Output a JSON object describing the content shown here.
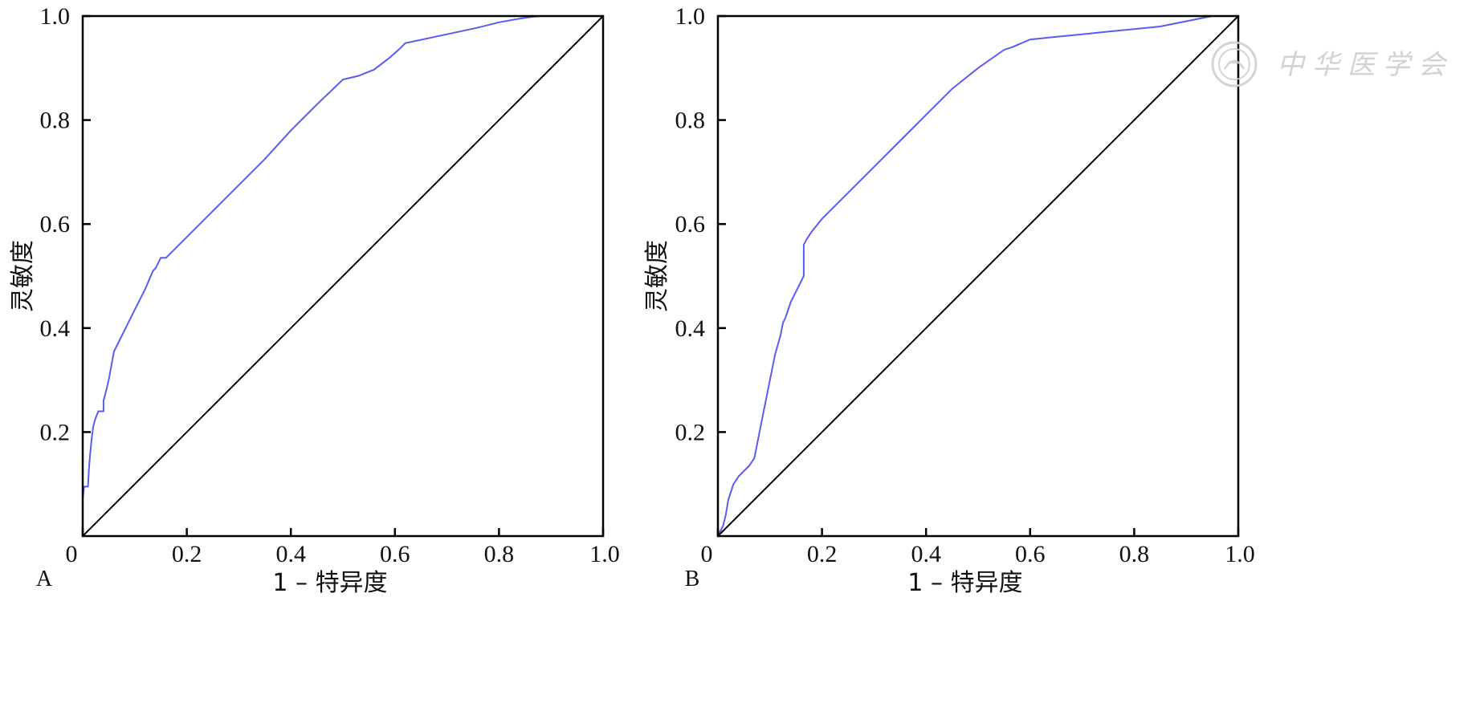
{
  "chart_data": [
    {
      "type": "line",
      "panel_label": "A",
      "xlabel": "1 – 特异度",
      "ylabel": "灵敏度",
      "xlim": [
        0,
        1
      ],
      "ylim": [
        0,
        1
      ],
      "x_ticks": [
        0,
        0.2,
        0.4,
        0.6,
        0.8,
        1.0
      ],
      "x_tick_labels": [
        "0",
        "0.2",
        "0.4",
        "0.6",
        "0.8",
        "1.0"
      ],
      "y_ticks": [
        0.2,
        0.4,
        0.6,
        0.8,
        1.0
      ],
      "y_tick_labels": [
        "0.2",
        "0.4",
        "0.6",
        "0.8",
        "1.0"
      ],
      "grid": false,
      "legend": "none",
      "series": [
        {
          "color": "#5b5bf0",
          "x": [
            0,
            0.002,
            0.003,
            0.006,
            0.01,
            0.012,
            0.014,
            0.017,
            0.02,
            0.024,
            0.03,
            0.035,
            0.04,
            0.04,
            0.045,
            0.05,
            0.06,
            0.07,
            0.085,
            0.1,
            0.12,
            0.135,
            0.14,
            0.145,
            0.15,
            0.16,
            0.2,
            0.25,
            0.3,
            0.35,
            0.4,
            0.45,
            0.5,
            0.53,
            0.56,
            0.59,
            0.61,
            0.62,
            0.63,
            0.7,
            0.76,
            0.8,
            0.84,
            0.86,
            0.88,
            1.0
          ],
          "y": [
            0.07,
            0.09,
            0.095,
            0.095,
            0.095,
            0.13,
            0.155,
            0.185,
            0.21,
            0.225,
            0.24,
            0.24,
            0.24,
            0.26,
            0.28,
            0.3,
            0.355,
            0.375,
            0.405,
            0.435,
            0.475,
            0.51,
            0.515,
            0.525,
            0.535,
            0.535,
            0.575,
            0.625,
            0.675,
            0.725,
            0.78,
            0.83,
            0.878,
            0.885,
            0.897,
            0.92,
            0.938,
            0.948,
            0.95,
            0.965,
            0.978,
            0.988,
            0.995,
            0.998,
            1.0,
            1.0
          ]
        },
        {
          "color": "#000000",
          "x": [
            0,
            1
          ],
          "y": [
            0,
            1
          ]
        }
      ]
    },
    {
      "type": "line",
      "panel_label": "B",
      "xlabel": "1 – 特异度",
      "ylabel": "灵敏度",
      "xlim": [
        0,
        1
      ],
      "ylim": [
        0,
        1
      ],
      "x_ticks": [
        0,
        0.2,
        0.4,
        0.6,
        0.8,
        1.0
      ],
      "x_tick_labels": [
        "0",
        "0.2",
        "0.4",
        "0.6",
        "0.8",
        "1.0"
      ],
      "y_ticks": [
        0.2,
        0.4,
        0.6,
        0.8,
        1.0
      ],
      "y_tick_labels": [
        "0.2",
        "0.4",
        "0.6",
        "0.8",
        "1.0"
      ],
      "grid": false,
      "legend": "none",
      "series": [
        {
          "color": "#5b5bf0",
          "x": [
            0,
            0.005,
            0.01,
            0.015,
            0.02,
            0.025,
            0.03,
            0.04,
            0.05,
            0.06,
            0.07,
            0.08,
            0.09,
            0.1,
            0.11,
            0.12,
            0.125,
            0.13,
            0.14,
            0.15,
            0.165,
            0.165,
            0.17,
            0.18,
            0.2,
            0.25,
            0.3,
            0.35,
            0.4,
            0.45,
            0.5,
            0.55,
            0.565,
            0.6,
            0.65,
            0.7,
            0.75,
            0.8,
            0.85,
            0.9,
            0.95,
            1.0
          ],
          "y": [
            0.0,
            0.01,
            0.02,
            0.04,
            0.07,
            0.085,
            0.1,
            0.115,
            0.125,
            0.135,
            0.15,
            0.2,
            0.25,
            0.3,
            0.35,
            0.385,
            0.41,
            0.42,
            0.45,
            0.47,
            0.5,
            0.56,
            0.57,
            0.585,
            0.61,
            0.66,
            0.71,
            0.76,
            0.81,
            0.86,
            0.9,
            0.935,
            0.94,
            0.955,
            0.96,
            0.965,
            0.97,
            0.975,
            0.98,
            0.99,
            1.0,
            1.0
          ]
        },
        {
          "color": "#000000",
          "x": [
            0,
            1
          ],
          "y": [
            0,
            1
          ]
        }
      ]
    }
  ],
  "watermark": {
    "text": "中华医学会",
    "icon": "society-seal-icon",
    "color": "#cfcfcf"
  }
}
